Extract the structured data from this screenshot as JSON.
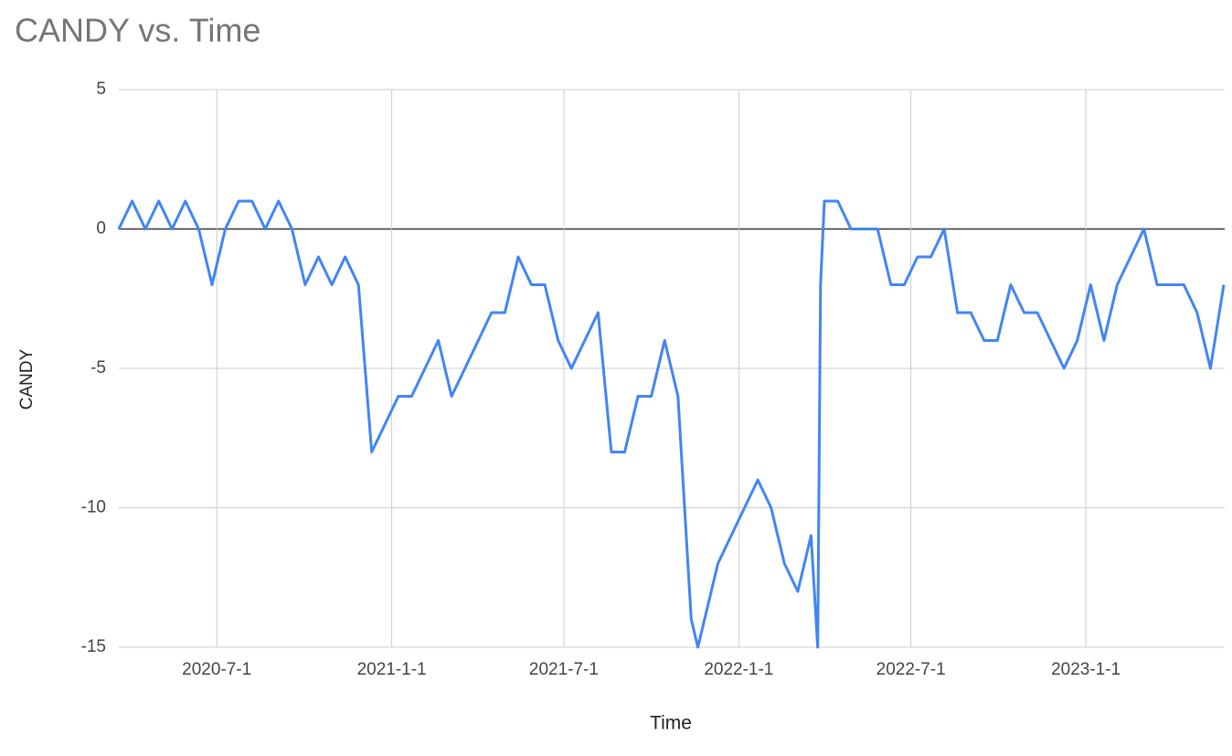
{
  "chart_data": {
    "type": "line",
    "title": "CANDY vs. Time",
    "x_label": "Time",
    "y_label": "CANDY",
    "x": [
      "2020-3-20",
      "2020-4-3",
      "2020-4-17",
      "2020-5-1",
      "2020-5-15",
      "2020-5-29",
      "2020-6-12",
      "2020-6-26",
      "2020-7-10",
      "2020-7-24",
      "2020-8-7",
      "2020-8-21",
      "2020-9-4",
      "2020-9-18",
      "2020-10-2",
      "2020-10-16",
      "2020-10-30",
      "2020-11-13",
      "2020-11-27",
      "2020-12-11",
      "2020-12-25",
      "2021-1-8",
      "2021-1-22",
      "2021-2-5",
      "2021-2-19",
      "2021-3-5",
      "2021-3-19",
      "2021-4-2",
      "2021-4-16",
      "2021-4-30",
      "2021-5-14",
      "2021-5-28",
      "2021-6-11",
      "2021-6-25",
      "2021-7-9",
      "2021-7-23",
      "2021-8-6",
      "2021-8-20",
      "2021-9-3",
      "2021-9-17",
      "2021-10-1",
      "2021-10-15",
      "2021-10-29",
      "2021-11-12",
      "2021-11-19",
      "2021-11-26",
      "2021-12-10",
      "2021-12-24",
      "2022-1-7",
      "2022-1-21",
      "2022-2-4",
      "2022-2-18",
      "2022-3-4",
      "2022-3-18",
      "2022-3-25",
      "2022-3-28",
      "2022-4-1",
      "2022-4-15",
      "2022-4-29",
      "2022-5-13",
      "2022-5-27",
      "2022-6-10",
      "2022-6-24",
      "2022-7-8",
      "2022-7-22",
      "2022-8-5",
      "2022-8-19",
      "2022-9-2",
      "2022-9-16",
      "2022-9-30",
      "2022-10-14",
      "2022-10-28",
      "2022-11-11",
      "2022-11-25",
      "2022-12-9",
      "2022-12-23",
      "2023-1-6",
      "2023-1-20",
      "2023-2-3",
      "2023-2-17",
      "2023-3-3",
      "2023-3-17",
      "2023-3-31",
      "2023-4-14",
      "2023-4-28",
      "2023-5-12",
      "2023-5-26"
    ],
    "series": [
      {
        "name": "CANDY",
        "color": "#4285f4",
        "values": [
          0,
          1,
          0,
          1,
          0,
          1,
          0,
          -2,
          0,
          1,
          1,
          0,
          1,
          0,
          -2,
          -1,
          -2,
          -1,
          -2,
          -8,
          -7,
          -6,
          -6,
          -5,
          -4,
          -6,
          -5,
          -4,
          -3,
          -3,
          -1,
          -2,
          -2,
          -4,
          -5,
          -4,
          -3,
          -8,
          -8,
          -6,
          -6,
          -4,
          -6,
          -14,
          -15,
          -14,
          -12,
          -11,
          -10,
          -9,
          -10,
          -12,
          -13,
          -11,
          -15,
          -2,
          1,
          1,
          0,
          0,
          0,
          -2,
          -2,
          -1,
          -1,
          0,
          -3,
          -3,
          -4,
          -4,
          -2,
          -3,
          -3,
          -4,
          -5,
          -4,
          -2,
          -4,
          -2,
          -1,
          0,
          -2,
          -2,
          -2,
          -3,
          -5,
          -2
        ]
      }
    ],
    "xlim": [
      "2020-3-20",
      "2023-5-27"
    ],
    "xticks": [
      "2020-7-1",
      "2021-1-1",
      "2021-7-1",
      "2022-1-1",
      "2022-7-1",
      "2023-1-1"
    ],
    "ylim": [
      -15,
      5
    ],
    "yticks": [
      -15,
      -10,
      -5,
      0,
      5
    ],
    "grid": true
  }
}
